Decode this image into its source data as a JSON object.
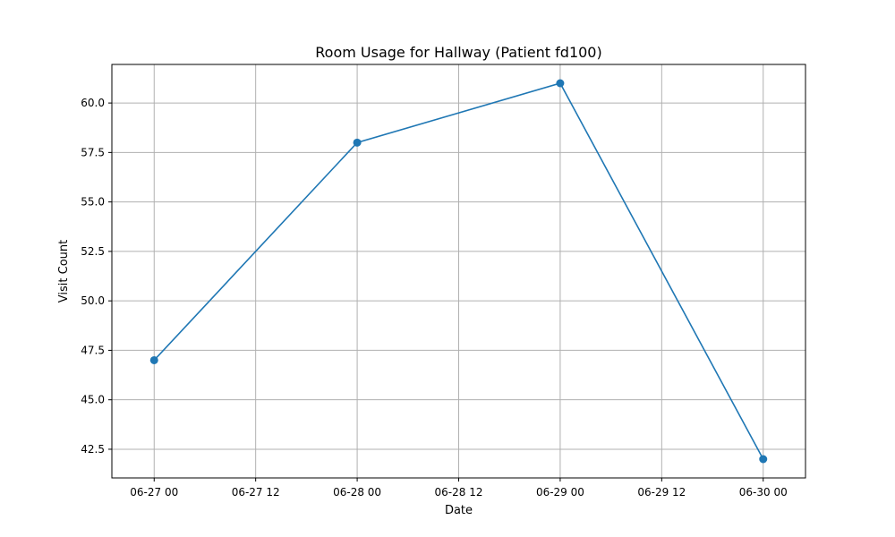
{
  "chart_data": {
    "type": "line",
    "title": "Room Usage for Hallway (Patient fd100)",
    "xlabel": "Date",
    "ylabel": "Visit Count",
    "x_ticks": [
      "06-27 00",
      "06-27 12",
      "06-28 00",
      "06-28 12",
      "06-29 00",
      "06-29 12",
      "06-30 00"
    ],
    "y_ticks": [
      "42.5",
      "45.0",
      "47.5",
      "50.0",
      "52.5",
      "55.0",
      "57.5",
      "60.0"
    ],
    "xlim": [
      "06-26 19",
      "06-30 05"
    ],
    "ylim": [
      41.05,
      61.95
    ],
    "grid": true,
    "color": "#1f77b4",
    "series": [
      {
        "x": [
          "06-27 00",
          "06-28 00",
          "06-29 00",
          "06-30 00"
        ],
        "values": [
          47,
          58,
          61,
          42
        ]
      }
    ]
  }
}
